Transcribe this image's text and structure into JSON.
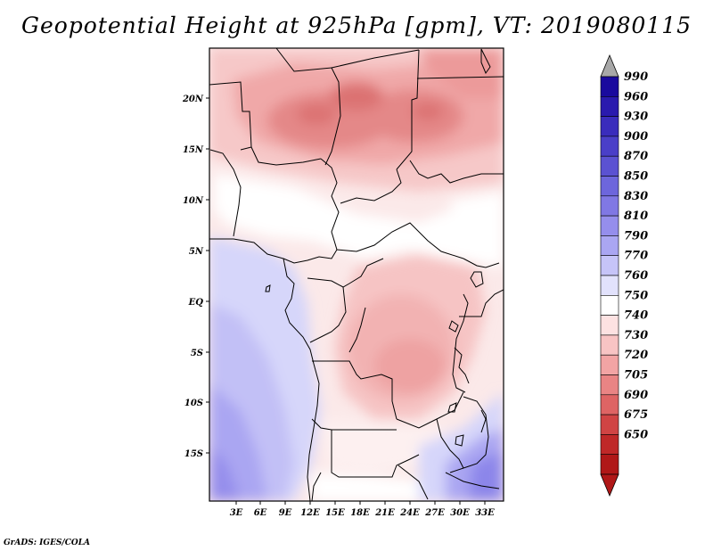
{
  "title": "Geopotential Height at 925hPa [gpm], VT: 2019080115",
  "credit": "GrADS: IGES/COLA",
  "map": {
    "lat_labels": [
      "20N",
      "15N",
      "10N",
      "5N",
      "EQ",
      "5S",
      "10S",
      "15S"
    ],
    "lon_labels": [
      "3E",
      "6E",
      "9E",
      "12E",
      "15E",
      "18E",
      "21E",
      "24E",
      "27E",
      "30E",
      "33E"
    ]
  },
  "colorbar": {
    "levels": [
      "990",
      "960",
      "930",
      "900",
      "870",
      "850",
      "830",
      "810",
      "790",
      "770",
      "760",
      "750",
      "740",
      "730",
      "720",
      "705",
      "690",
      "675",
      "650"
    ],
    "colors": [
      "#1a0a9e",
      "#2a1aae",
      "#3a2cbc",
      "#4a3fc8",
      "#5b52d2",
      "#6d66dc",
      "#8078e4",
      "#958eec",
      "#aaa6f2",
      "#c6c4f8",
      "#e2e2fc",
      "#ffffff",
      "#fde2e2",
      "#f8c4c4",
      "#f2a4a4",
      "#e98484",
      "#de6464",
      "#d04444",
      "#bf2828",
      "#b01818"
    ],
    "over_color": "#a8a8a8",
    "under_color": "#b01818"
  }
}
